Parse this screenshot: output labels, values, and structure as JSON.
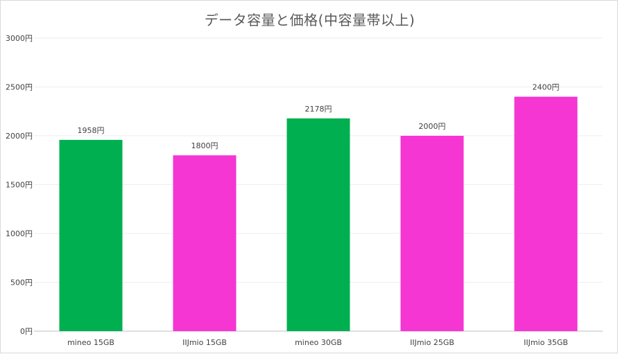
{
  "chart_data": {
    "type": "bar",
    "title": "データ容量と価格(中容量帯以上)",
    "xlabel": "",
    "ylabel": "",
    "ylim": [
      0,
      3000
    ],
    "yticks": [
      0,
      500,
      1000,
      1500,
      2000,
      2500,
      3000
    ],
    "ytick_suffix": "円",
    "grid": true,
    "legend": "none",
    "categories": [
      "mineo  15GB",
      "IIJmio 15GB",
      "mineo 30GB",
      "IIJmio 25GB",
      "IIJmio 35GB"
    ],
    "values": [
      1958,
      1800,
      2178,
      2000,
      2400
    ],
    "data_labels": [
      "1958円",
      "1800円",
      "2178円",
      "2000円",
      "2400円"
    ],
    "bar_colors": [
      "#00b050",
      "#f536d2",
      "#00b050",
      "#f536d2",
      "#f536d2"
    ]
  }
}
